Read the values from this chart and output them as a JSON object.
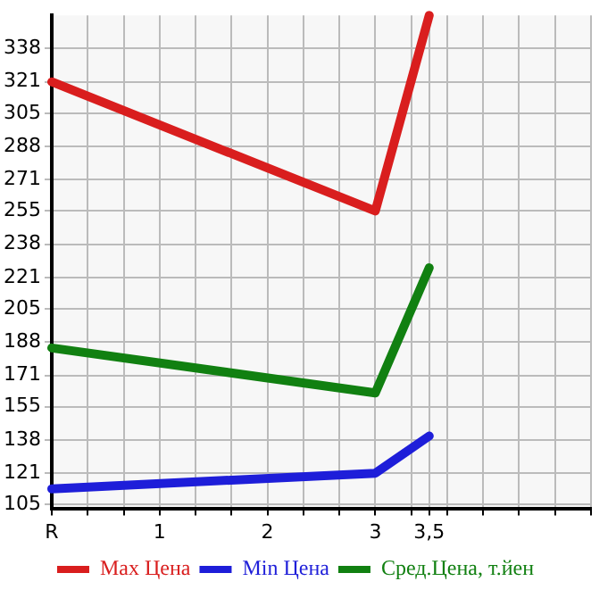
{
  "chart_data": {
    "type": "line",
    "x": [
      0,
      3,
      3.5
    ],
    "xlim": [
      0,
      5
    ],
    "xticks": [
      {
        "value": 0,
        "label": "R"
      },
      {
        "value": 0.333,
        "label": null
      },
      {
        "value": 0.667,
        "label": null
      },
      1,
      {
        "value": 1.333,
        "label": null
      },
      {
        "value": 1.667,
        "label": null
      },
      2,
      {
        "value": 2.333,
        "label": null
      },
      {
        "value": 2.667,
        "label": null
      },
      3,
      {
        "value": 3.333,
        "label": null
      },
      {
        "value": 3.5,
        "label": "3,5"
      },
      {
        "value": 3.667,
        "label": null
      },
      {
        "value": 4,
        "label": null
      },
      {
        "value": 4.333,
        "label": null
      },
      {
        "value": 4.667,
        "label": null
      },
      {
        "value": 5,
        "label": null
      }
    ],
    "ylim": [
      103,
      355
    ],
    "yticks": [
      105,
      121,
      138,
      155,
      171,
      188,
      205,
      221,
      238,
      255,
      271,
      288,
      305,
      321,
      338
    ],
    "series": [
      {
        "name": "Max Цена",
        "color": "#d91e1e",
        "values": [
          321,
          255,
          355
        ]
      },
      {
        "name": "Min Цена",
        "color": "#1e1ed9",
        "values": [
          113,
          121,
          140
        ]
      },
      {
        "name": "Сред.Цена, т.йен",
        "color": "#118011",
        "values": [
          185,
          162,
          226
        ]
      }
    ],
    "grid": true,
    "legend": "bottom",
    "marker": "none",
    "line_style": "solid"
  }
}
